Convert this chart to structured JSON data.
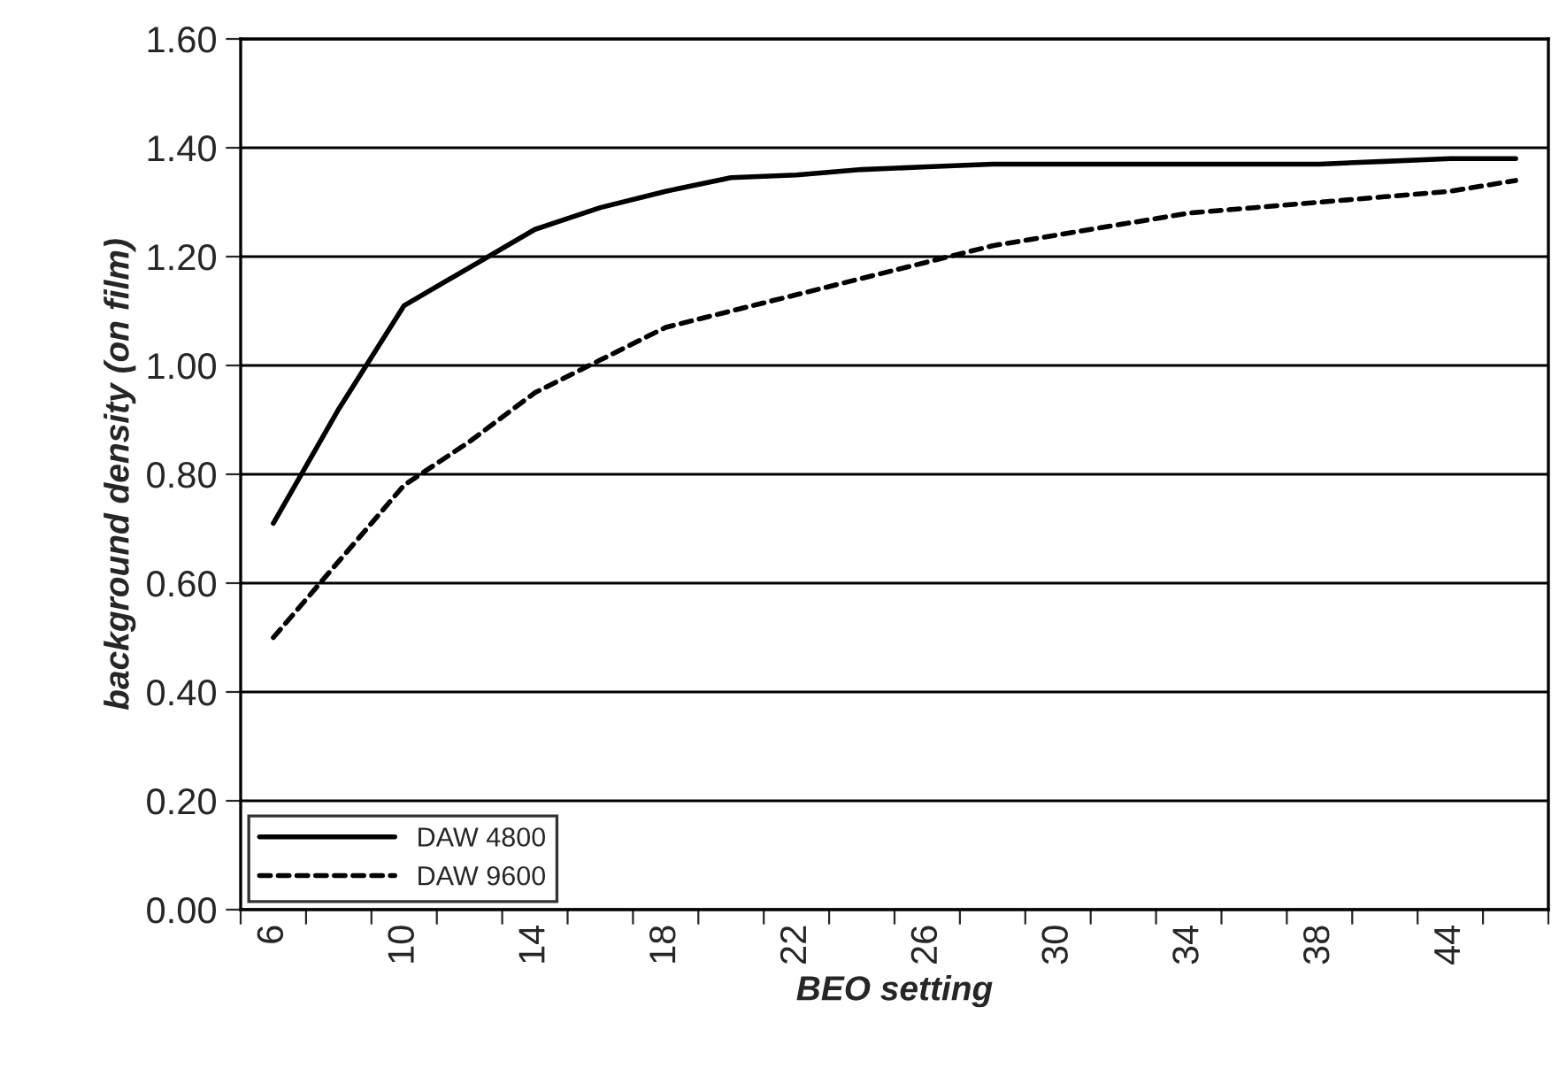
{
  "chart_data": {
    "type": "line",
    "xlabel": "BEO setting",
    "ylabel": "background density (on film)",
    "categories": [
      "6",
      null,
      "10",
      null,
      "14",
      null,
      "18",
      null,
      "22",
      null,
      "26",
      null,
      "30",
      null,
      "34",
      null,
      "38",
      null,
      "44",
      null
    ],
    "series": [
      {
        "name": "DAW 4800",
        "color": "#000000",
        "line_style": "solid",
        "values": [
          0.71,
          0.92,
          1.11,
          1.18,
          1.25,
          1.29,
          1.32,
          1.345,
          1.35,
          1.36,
          1.365,
          1.37,
          1.37,
          1.37,
          1.37,
          1.37,
          1.37,
          1.375,
          1.38,
          1.38
        ]
      },
      {
        "name": "DAW 9600",
        "color": "#000000",
        "line_style": "dashed",
        "values": [
          0.5,
          0.64,
          0.78,
          0.86,
          0.95,
          1.01,
          1.07,
          1.1,
          1.13,
          1.16,
          1.19,
          1.22,
          1.24,
          1.26,
          1.28,
          1.29,
          1.3,
          1.31,
          1.32,
          1.34
        ]
      }
    ],
    "ylim": [
      0,
      1.6
    ],
    "yticks": [
      {
        "value": 0,
        "label": "0.00"
      },
      {
        "value": 0.2,
        "label": "0.20"
      },
      {
        "value": 0.4,
        "label": "0.40"
      },
      {
        "value": 0.6,
        "label": "0.60"
      },
      {
        "value": 0.8,
        "label": "0.80"
      },
      {
        "value": 1.0,
        "label": "1.00"
      },
      {
        "value": 1.2,
        "label": "1.20"
      },
      {
        "value": 1.4,
        "label": "1.40"
      },
      {
        "value": 1.6,
        "label": "1.60"
      }
    ],
    "grid": "y",
    "legend": "bottom left",
    "marker": "none"
  }
}
